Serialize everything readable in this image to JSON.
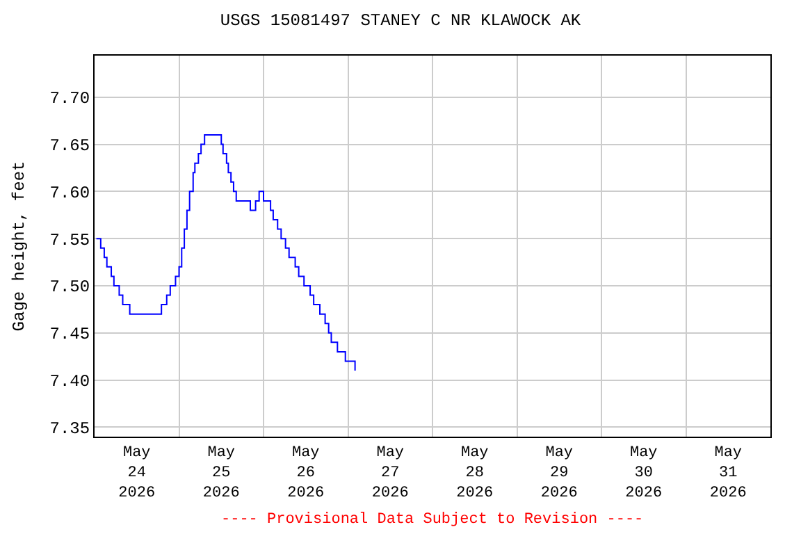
{
  "chart_data": {
    "type": "step",
    "title": "USGS 15081497 STANEY C NR KLAWOCK AK",
    "ylabel": "Gage height, feet",
    "x": [
      "2026-05-24T00:30",
      "2026-05-24T01:45",
      "2026-05-24T02:45",
      "2026-05-24T03:30",
      "2026-05-24T04:45",
      "2026-05-24T05:30",
      "2026-05-24T07:00",
      "2026-05-24T08:00",
      "2026-05-24T10:00",
      "2026-05-24T19:00",
      "2026-05-24T20:30",
      "2026-05-24T21:30",
      "2026-05-24T23:00",
      "2026-05-25T00:00",
      "2026-05-25T00:45",
      "2026-05-25T01:30",
      "2026-05-25T02:15",
      "2026-05-25T03:00",
      "2026-05-25T04:00",
      "2026-05-25T04:30",
      "2026-05-25T05:30",
      "2026-05-25T06:15",
      "2026-05-25T07:15",
      "2026-05-25T12:00",
      "2026-05-25T12:30",
      "2026-05-25T13:30",
      "2026-05-25T14:00",
      "2026-05-25T14:45",
      "2026-05-25T15:30",
      "2026-05-25T16:15",
      "2026-05-25T20:15",
      "2026-05-25T21:45",
      "2026-05-25T22:45",
      "2026-05-26T00:00",
      "2026-05-26T02:00",
      "2026-05-26T02:45",
      "2026-05-26T04:00",
      "2026-05-26T05:00",
      "2026-05-26T06:15",
      "2026-05-26T07:15",
      "2026-05-26T09:00",
      "2026-05-26T10:00",
      "2026-05-26T11:30",
      "2026-05-26T13:15",
      "2026-05-26T14:15",
      "2026-05-26T16:00",
      "2026-05-26T17:30",
      "2026-05-26T18:30",
      "2026-05-26T19:15",
      "2026-05-26T21:00",
      "2026-05-26T23:15",
      "2026-05-27T01:30",
      "2026-05-27T02:00"
    ],
    "series": [
      {
        "color": "#0000ff",
        "values": [
          7.55,
          7.54,
          7.53,
          7.52,
          7.51,
          7.5,
          7.49,
          7.48,
          7.47,
          7.48,
          7.49,
          7.5,
          7.51,
          7.52,
          7.54,
          7.56,
          7.58,
          7.6,
          7.62,
          7.63,
          7.64,
          7.65,
          7.66,
          7.65,
          7.64,
          7.63,
          7.62,
          7.61,
          7.6,
          7.59,
          7.58,
          7.59,
          7.6,
          7.59,
          7.58,
          7.57,
          7.56,
          7.55,
          7.54,
          7.53,
          7.52,
          7.51,
          7.5,
          7.49,
          7.48,
          7.47,
          7.46,
          7.45,
          7.44,
          7.43,
          7.42,
          7.42,
          7.41
        ]
      }
    ],
    "xlim": [
      "2026-05-24T00:00",
      "2026-06-01T00:00"
    ],
    "xticks": [
      {
        "value": "2026-05-24T12:00",
        "label": "May\n24\n2026"
      },
      {
        "value": "2026-05-25T00:00",
        "label": null
      },
      {
        "value": "2026-05-25T12:00",
        "label": "May\n25\n2026"
      },
      {
        "value": "2026-05-26T00:00",
        "label": null
      },
      {
        "value": "2026-05-26T12:00",
        "label": "May\n26\n2026"
      },
      {
        "value": "2026-05-27T00:00",
        "label": null
      },
      {
        "value": "2026-05-27T12:00",
        "label": "May\n27\n2026"
      },
      {
        "value": "2026-05-28T00:00",
        "label": null
      },
      {
        "value": "2026-05-28T12:00",
        "label": "May\n28\n2026"
      },
      {
        "value": "2026-05-29T00:00",
        "label": null
      },
      {
        "value": "2026-05-29T12:00",
        "label": "May\n29\n2026"
      },
      {
        "value": "2026-05-30T00:00",
        "label": null
      },
      {
        "value": "2026-05-30T12:00",
        "label": "May\n30\n2026"
      },
      {
        "value": "2026-05-31T00:00",
        "label": null
      },
      {
        "value": "2026-05-31T12:00",
        "label": "May\n31\n2026"
      }
    ],
    "ylim": [
      7.34,
      7.744
    ],
    "yticks": [
      {
        "value": 7.35,
        "label": "7.35"
      },
      {
        "value": 7.4,
        "label": "7.40"
      },
      {
        "value": 7.45,
        "label": "7.45"
      },
      {
        "value": 7.5,
        "label": "7.50"
      },
      {
        "value": 7.55,
        "label": "7.55"
      },
      {
        "value": 7.6,
        "label": "7.60"
      },
      {
        "value": 7.65,
        "label": "7.65"
      },
      {
        "value": 7.7,
        "label": "7.70"
      }
    ],
    "grid": true,
    "marker": "none",
    "line_style": "solid",
    "annotations": [
      "---- Provisional Data Subject to Revision ----"
    ]
  }
}
